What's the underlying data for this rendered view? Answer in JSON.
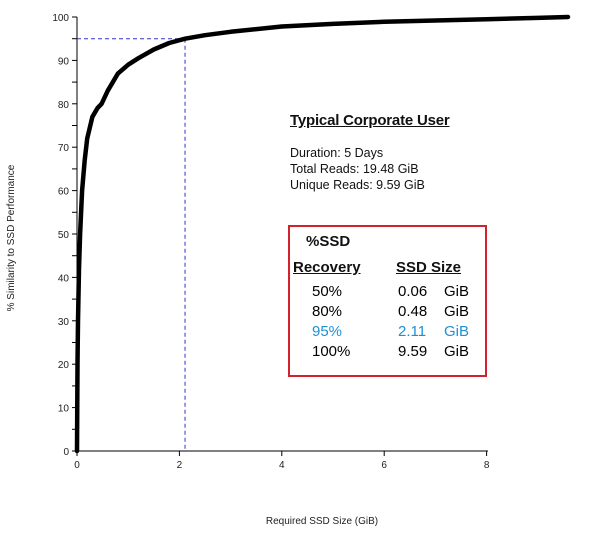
{
  "chart_data": {
    "type": "line",
    "title": "",
    "xlabel": "Required SSD Size (GiB)",
    "ylabel": "% Similarity to SSD Performance",
    "xlim": [
      0,
      9.6
    ],
    "ylim": [
      0,
      100
    ],
    "xticks": [
      0,
      2,
      4,
      6,
      8
    ],
    "yticks": [
      0,
      5,
      10,
      15,
      20,
      25,
      30,
      35,
      40,
      45,
      50,
      55,
      60,
      65,
      70,
      75,
      80,
      85,
      90,
      95,
      100
    ],
    "grid": false,
    "series": [
      {
        "color": "#000000",
        "x": [
          0,
          0.01,
          0.02,
          0.04,
          0.06,
          0.1,
          0.15,
          0.2,
          0.3,
          0.4,
          0.48,
          0.6,
          0.8,
          1.0,
          1.2,
          1.5,
          1.8,
          2.11,
          2.5,
          3.0,
          4.0,
          5.0,
          6.0,
          7.0,
          8.0,
          9.0,
          9.59
        ],
        "y": [
          0,
          20,
          30,
          42,
          50,
          60,
          67,
          72,
          77,
          79,
          80,
          83,
          87,
          89,
          90.5,
          92.5,
          94,
          95,
          95.8,
          96.6,
          97.8,
          98.4,
          98.9,
          99.2,
          99.5,
          99.8,
          100
        ]
      }
    ],
    "reference_point": {
      "x": 2.11,
      "y": 95,
      "color": "#3333cc"
    }
  },
  "info": {
    "title": "Typical Corporate User",
    "duration": "Duration: 5 Days",
    "total_reads": "Total Reads: 19.48 GiB",
    "unique_reads": "Unique Reads: 9.59 GiB"
  },
  "table": {
    "header_line1": "%SSD",
    "header_recovery": "Recovery",
    "header_size": "SSD Size",
    "rows": [
      {
        "recovery": "50%",
        "size": "0.06",
        "unit": "GiB",
        "color": "#000000"
      },
      {
        "recovery": "80%",
        "size": "0.48",
        "unit": "GiB",
        "color": "#000000"
      },
      {
        "recovery": "95%",
        "size": "2.11",
        "unit": "GiB",
        "color": "#1f8fd1"
      },
      {
        "recovery": "100%",
        "size": "9.59",
        "unit": "GiB",
        "color": "#000000"
      }
    ]
  }
}
